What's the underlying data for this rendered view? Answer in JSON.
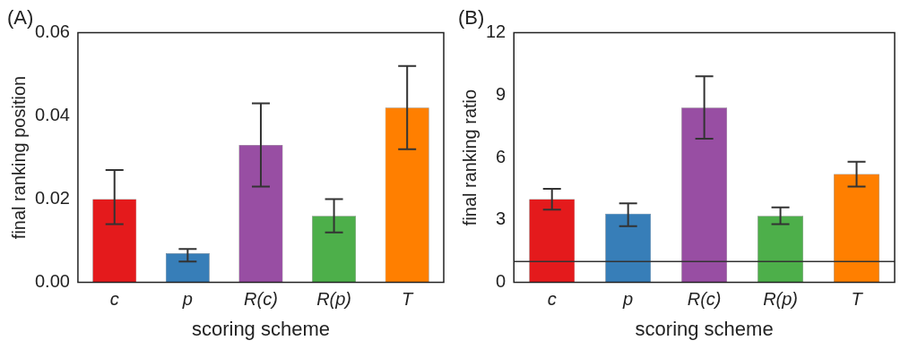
{
  "chart_data": [
    {
      "type": "bar",
      "title": "(A)",
      "xlabel": "scoring scheme",
      "ylabel": "final ranking position",
      "categories": [
        "c",
        "p",
        "R(c)",
        "R(p)",
        "T"
      ],
      "values": [
        0.02,
        0.007,
        0.033,
        0.016,
        0.042
      ],
      "errors": [
        [
          0.014,
          0.027
        ],
        [
          0.005,
          0.008
        ],
        [
          0.023,
          0.043
        ],
        [
          0.012,
          0.02
        ],
        [
          0.032,
          0.052
        ]
      ],
      "colors": [
        "#e41a1c",
        "#377eb8",
        "#984ea3",
        "#4daf4a",
        "#ff7f00"
      ],
      "ylim": [
        0,
        0.06
      ],
      "yticks": [
        {
          "value": 0,
          "label": "0.00"
        },
        {
          "value": 0.02,
          "label": "0.02"
        },
        {
          "value": 0.04,
          "label": "0.04"
        },
        {
          "value": 0.06,
          "label": "0.06"
        }
      ],
      "grid": false,
      "legend": false
    },
    {
      "type": "bar",
      "title": "(B)",
      "xlabel": "scoring scheme",
      "ylabel": "final ranking ratio",
      "categories": [
        "c",
        "p",
        "R(c)",
        "R(p)",
        "T"
      ],
      "values": [
        4.0,
        3.3,
        8.4,
        3.2,
        5.2
      ],
      "errors": [
        [
          3.5,
          4.5
        ],
        [
          2.7,
          3.8
        ],
        [
          6.9,
          9.9
        ],
        [
          2.8,
          3.6
        ],
        [
          4.6,
          5.8
        ]
      ],
      "colors": [
        "#e41a1c",
        "#377eb8",
        "#984ea3",
        "#4daf4a",
        "#ff7f00"
      ],
      "ylim": [
        0,
        12
      ],
      "yticks": [
        0,
        3,
        6,
        9,
        12
      ],
      "ref_lines": [
        {
          "axis": "y",
          "value": 1,
          "color": "#333333"
        }
      ],
      "grid": false,
      "legend": false
    }
  ]
}
